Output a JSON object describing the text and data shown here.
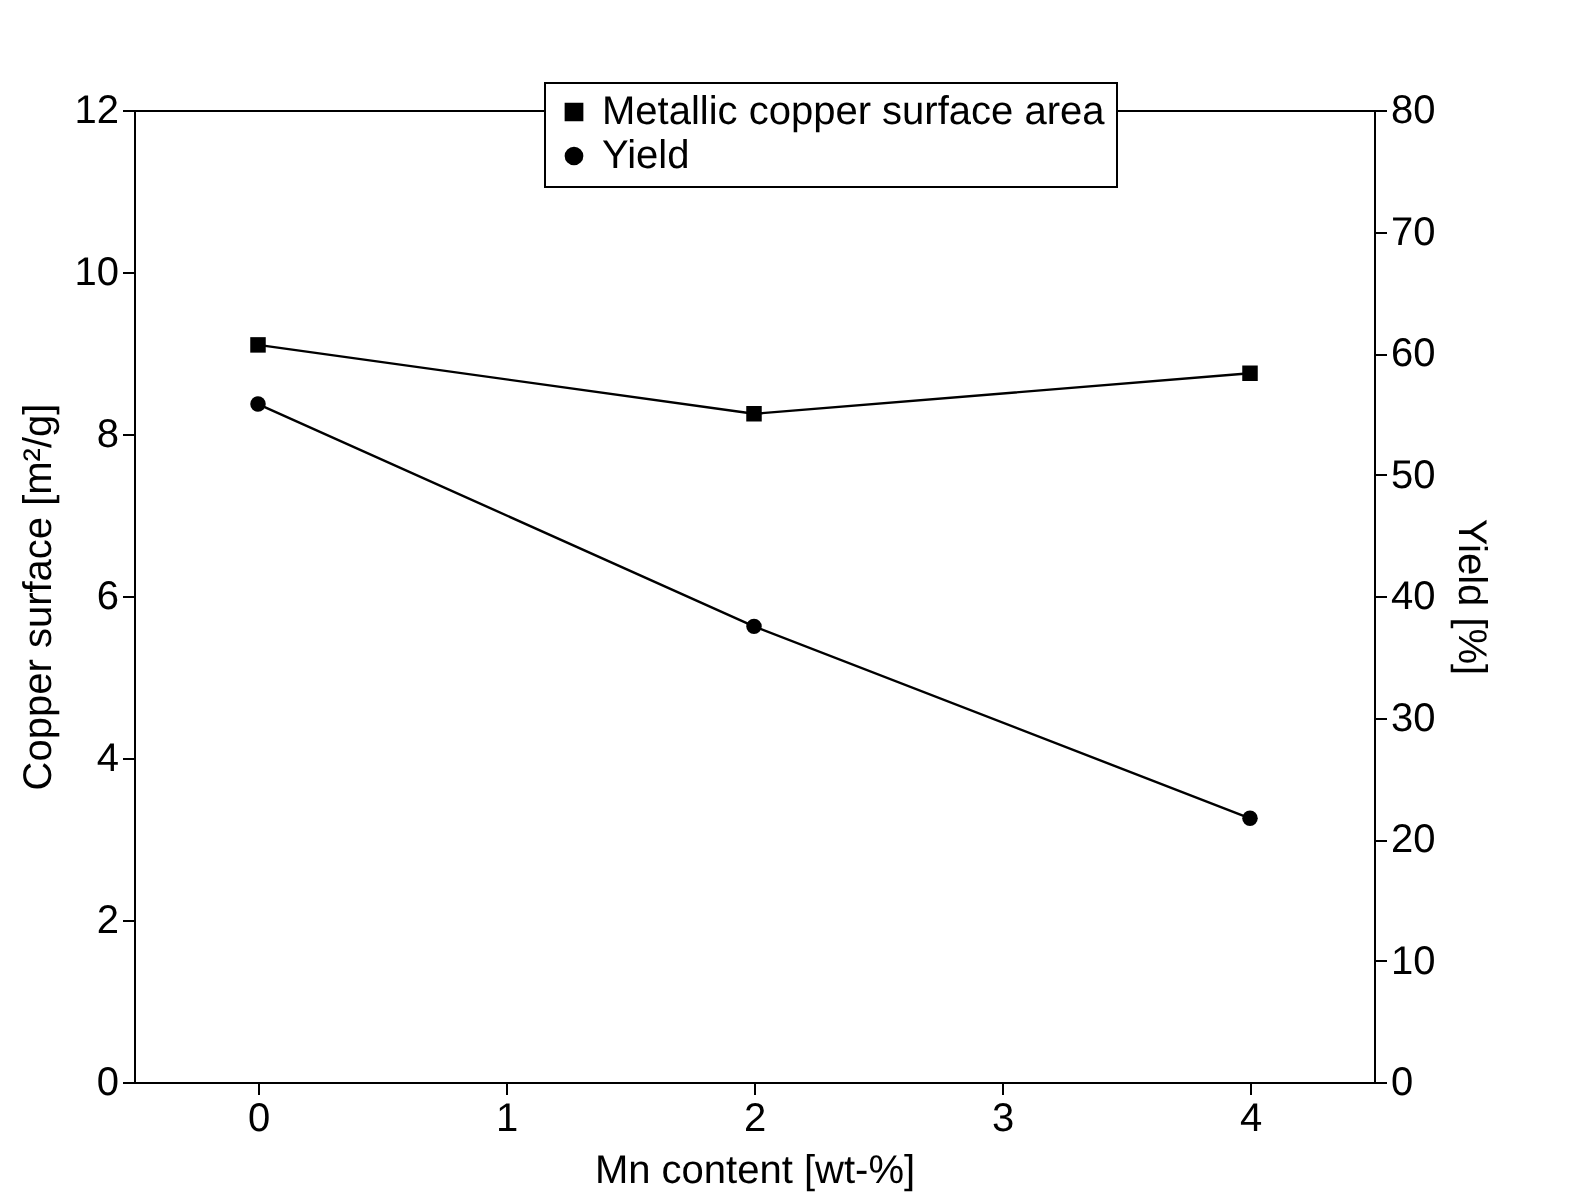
{
  "chart_data": {
    "type": "line",
    "xlabel": "Mn content [wt-%]",
    "ylabel": "Copper surface [m²/g]",
    "y2label": "Yield [%]",
    "x": [
      0,
      2,
      4
    ],
    "xlim": [
      -0.5,
      4.5
    ],
    "xticks": [
      0,
      1,
      2,
      3,
      4
    ],
    "ylim": [
      0,
      12
    ],
    "yticks": [
      0,
      2,
      4,
      6,
      8,
      10,
      12
    ],
    "y2lim": [
      0,
      80
    ],
    "y2ticks": [
      0,
      10,
      20,
      30,
      40,
      50,
      60,
      70,
      80
    ],
    "series": [
      {
        "name": "Metallic copper surface area",
        "color": "#000000",
        "marker": "square",
        "values": [
          9.1,
          8.25,
          8.75
        ]
      },
      {
        "name": "Yield",
        "color": "#000000",
        "marker": "circle",
        "axis": "y2",
        "values": [
          55.8,
          37.5,
          21.7
        ]
      }
    ],
    "grid": false,
    "legend": "top",
    "line_style": "solid"
  }
}
